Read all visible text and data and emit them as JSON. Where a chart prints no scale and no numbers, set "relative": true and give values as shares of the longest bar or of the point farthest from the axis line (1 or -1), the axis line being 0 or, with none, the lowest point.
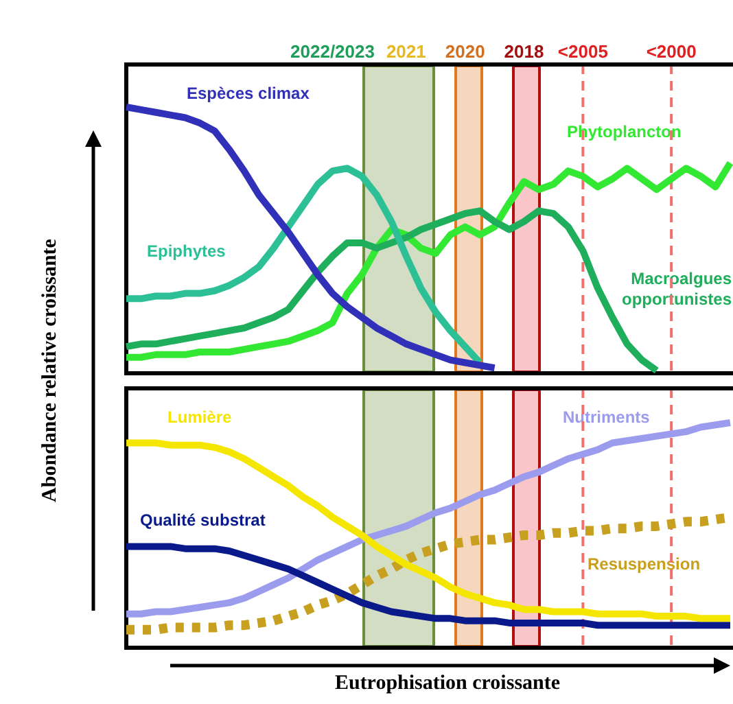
{
  "chart_data": [
    {
      "type": "line",
      "relative": true,
      "tick_labels": "x",
      "ylabel": "Abondance relative croissante",
      "categories": [
        null,
        null,
        null,
        null,
        null,
        null,
        null,
        null,
        null,
        null,
        null,
        null,
        null,
        null,
        "2022/2023",
        null,
        null,
        null,
        null,
        "2021",
        null,
        null,
        null,
        "2020",
        null,
        null,
        null,
        "2018",
        null,
        null,
        null,
        "<2005",
        null,
        null,
        null,
        null,
        null,
        "<2000",
        null,
        null,
        null,
        null
      ],
      "series": [
        {
          "name": "Espèces climax",
          "color": "#3030b8",
          "values": [
            1.0,
            0.99,
            0.98,
            0.97,
            0.96,
            0.94,
            0.91,
            0.84,
            0.76,
            0.67,
            0.6,
            0.53,
            0.45,
            0.37,
            0.3,
            0.25,
            0.21,
            0.17,
            0.14,
            0.11,
            0.09,
            0.07,
            0.05,
            0.04,
            0.03,
            0.02,
            null,
            null,
            null,
            null,
            null,
            null,
            null,
            null,
            null,
            null,
            null,
            null,
            null,
            null,
            null,
            null
          ]
        },
        {
          "name": "Epiphytes",
          "color": "#2dbf95",
          "values": [
            0.28,
            0.28,
            0.29,
            0.29,
            0.3,
            0.3,
            0.31,
            0.33,
            0.36,
            0.4,
            0.47,
            0.55,
            0.63,
            0.71,
            0.76,
            0.77,
            0.74,
            0.67,
            0.57,
            0.44,
            0.32,
            0.23,
            0.16,
            0.1,
            0.04,
            null,
            null,
            null,
            null,
            null,
            null,
            null,
            null,
            null,
            null,
            null,
            null,
            null,
            null,
            null,
            null,
            null
          ]
        },
        {
          "name": "Macroalgues opportunistes",
          "color": "#1fae5c",
          "values": [
            0.1,
            0.11,
            0.11,
            0.12,
            0.13,
            0.14,
            0.15,
            0.16,
            0.17,
            0.19,
            0.21,
            0.24,
            0.31,
            0.38,
            0.44,
            0.49,
            0.49,
            0.47,
            0.49,
            0.51,
            0.54,
            0.56,
            0.58,
            0.6,
            0.61,
            0.57,
            0.54,
            0.57,
            0.61,
            0.6,
            0.55,
            0.46,
            0.32,
            0.21,
            0.11,
            0.05,
            0.01,
            null,
            null,
            null,
            null,
            null
          ]
        },
        {
          "name": "Phytoplancton",
          "color": "#33e833",
          "values": [
            0.06,
            0.06,
            0.07,
            0.07,
            0.07,
            0.08,
            0.08,
            0.08,
            0.09,
            0.1,
            0.11,
            0.12,
            0.14,
            0.16,
            0.19,
            0.3,
            0.37,
            0.47,
            0.54,
            0.52,
            0.47,
            0.45,
            0.52,
            0.55,
            0.52,
            0.55,
            0.64,
            0.72,
            0.69,
            0.71,
            0.76,
            0.74,
            0.7,
            0.73,
            0.77,
            0.73,
            0.69,
            0.73,
            0.77,
            0.74,
            0.7,
            0.79
          ]
        }
      ],
      "ref_lines": [
        {
          "axis": "x",
          "value": "<2005",
          "color": "#f07070",
          "line_style": "dashed"
        },
        {
          "axis": "x",
          "value": "<2000",
          "color": "#f07070",
          "line_style": "dashed"
        }
      ]
    },
    {
      "type": "line",
      "relative": true,
      "tick_labels": false,
      "xlabel": "Eutrophisation croissante",
      "categories": [
        null,
        null,
        null,
        null,
        null,
        null,
        null,
        null,
        null,
        null,
        null,
        null,
        null,
        null,
        "2022/2023",
        null,
        null,
        null,
        null,
        "2021",
        null,
        null,
        null,
        "2020",
        null,
        null,
        null,
        "2018",
        null,
        null,
        null,
        "<2005",
        null,
        null,
        null,
        null,
        null,
        "<2000",
        null,
        null,
        null,
        null
      ],
      "series": [
        {
          "name": "Lumière",
          "color": "#f5e600",
          "values": [
            0.91,
            0.91,
            0.91,
            0.9,
            0.9,
            0.9,
            0.89,
            0.87,
            0.84,
            0.8,
            0.76,
            0.72,
            0.67,
            0.63,
            0.58,
            0.54,
            0.5,
            0.45,
            0.41,
            0.37,
            0.34,
            0.31,
            0.27,
            0.24,
            0.22,
            0.2,
            0.19,
            0.17,
            0.17,
            0.16,
            0.16,
            0.16,
            0.15,
            0.15,
            0.15,
            0.15,
            0.14,
            0.14,
            0.14,
            0.13,
            0.13,
            0.13
          ]
        },
        {
          "name": "Qualité substrat",
          "color": "#0a1a8a",
          "values": [
            0.45,
            0.45,
            0.45,
            0.45,
            0.44,
            0.44,
            0.44,
            0.43,
            0.41,
            0.39,
            0.37,
            0.35,
            0.32,
            0.29,
            0.26,
            0.23,
            0.2,
            0.18,
            0.16,
            0.15,
            0.14,
            0.13,
            0.13,
            0.12,
            0.12,
            0.12,
            0.11,
            0.11,
            0.11,
            0.11,
            0.11,
            0.11,
            0.1,
            0.1,
            0.1,
            0.1,
            0.1,
            0.1,
            0.1,
            0.1,
            0.1,
            0.1
          ]
        },
        {
          "name": "Nutriments",
          "color": "#9c9cee",
          "values": [
            0.15,
            0.15,
            0.16,
            0.16,
            0.17,
            0.18,
            0.19,
            0.2,
            0.22,
            0.25,
            0.28,
            0.31,
            0.35,
            0.39,
            0.42,
            0.45,
            0.48,
            0.5,
            0.52,
            0.54,
            0.57,
            0.6,
            0.62,
            0.65,
            0.68,
            0.7,
            0.73,
            0.76,
            0.78,
            0.81,
            0.84,
            0.86,
            0.88,
            0.91,
            0.92,
            0.93,
            0.94,
            0.95,
            0.96,
            0.98,
            0.99,
            1.0
          ]
        },
        {
          "name": "Resuspension",
          "color": "#c8a020",
          "line_style": "dotted",
          "values": [
            0.08,
            0.08,
            0.08,
            0.09,
            0.09,
            0.09,
            0.09,
            0.1,
            0.1,
            0.11,
            0.12,
            0.14,
            0.16,
            0.19,
            0.21,
            0.24,
            0.28,
            0.32,
            0.35,
            0.39,
            0.42,
            0.44,
            0.46,
            0.47,
            0.48,
            0.48,
            0.49,
            0.5,
            0.5,
            0.51,
            0.51,
            0.52,
            0.52,
            0.53,
            0.53,
            0.54,
            0.54,
            0.55,
            0.56,
            0.56,
            0.57,
            0.58
          ]
        }
      ],
      "ref_lines": [
        {
          "axis": "x",
          "value": "<2005",
          "color": "#f07070",
          "line_style": "dashed"
        },
        {
          "axis": "x",
          "value": "<2000",
          "color": "#f07070",
          "line_style": "dashed"
        }
      ]
    }
  ]
}
